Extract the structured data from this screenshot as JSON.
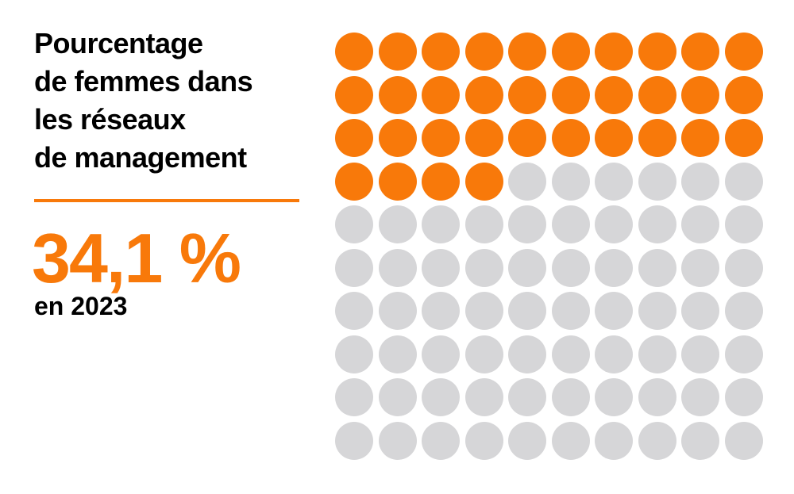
{
  "page": {
    "background": "#FFFFFF"
  },
  "header": {
    "title_lines": [
      "Pourcentage",
      "de femmes dans",
      "les réseaux",
      "de management"
    ]
  },
  "stat": {
    "value_label": "34,1 %",
    "period_label": "en 2023"
  },
  "colors": {
    "accent_orange": "#F8790A",
    "dot_empty_gray": "#D6D6D8",
    "text_black": "#000000"
  },
  "chart_data": {
    "type": "waffle",
    "title": "Pourcentage de femmes dans les réseaux de management",
    "value_percent": 34.1,
    "value_label": "34,1 %",
    "period": "en 2023",
    "rows": 10,
    "cols": 10,
    "total_units": 100,
    "filled_units": 34,
    "unit_value_percent": 1,
    "fill_color": "#F8790A",
    "empty_color": "#D6D6D8",
    "fill_direction": "left-to-right, top-to-bottom",
    "legend": "none",
    "grid_lines": "off"
  }
}
